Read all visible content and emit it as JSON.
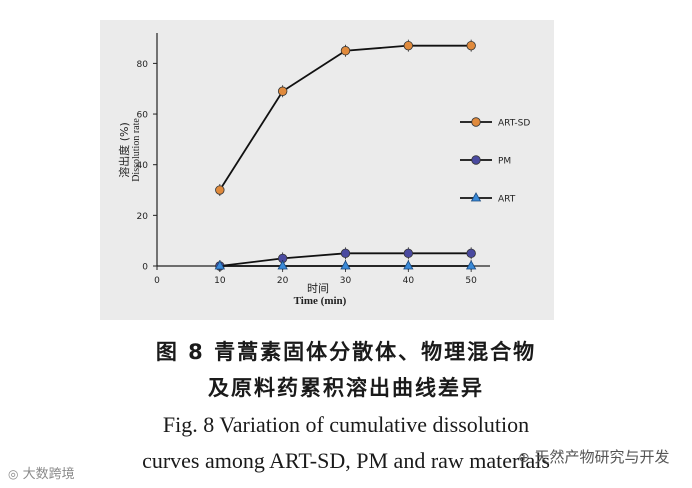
{
  "chart_data": {
    "type": "line",
    "x": [
      10,
      20,
      30,
      40,
      50
    ],
    "series": [
      {
        "name": "ART-SD",
        "values": [
          30,
          69,
          85,
          87,
          87
        ],
        "color": "#e08a3c",
        "marker": "circle"
      },
      {
        "name": "PM",
        "values": [
          0,
          3,
          5,
          5,
          5
        ],
        "color": "#4a4aa0",
        "marker": "circle"
      },
      {
        "name": "ART",
        "values": [
          0,
          0,
          0,
          0,
          0
        ],
        "color": "#3a8ad8",
        "marker": "triangle"
      }
    ],
    "xlim": [
      0,
      53
    ],
    "ylim": [
      0,
      92
    ],
    "xticks": [
      0,
      10,
      20,
      30,
      40,
      50
    ],
    "yticks": [
      0,
      20,
      40,
      60,
      80
    ],
    "xlabel_zh": "时间",
    "xlabel_en": "Time    (min)",
    "ylabel_zh": "溶出度    (%)",
    "ylabel_en": "Dissolution rate",
    "legend_position": "right"
  },
  "caption": {
    "zh_line1": "图 8    青蒿素固体分散体、物理混合物",
    "zh_line2": "及原料药累积溶出曲线差异",
    "en_line1": "Fig. 8    Variation of cumulative dissolution",
    "en_line2": "curves among ART-SD, PM and raw materials"
  },
  "watermarks": {
    "left": "大数跨境",
    "right": "天然产物研究与开发"
  },
  "colors": {
    "panel": "#ebebeb",
    "axis": "#222222",
    "line": "#111111"
  }
}
